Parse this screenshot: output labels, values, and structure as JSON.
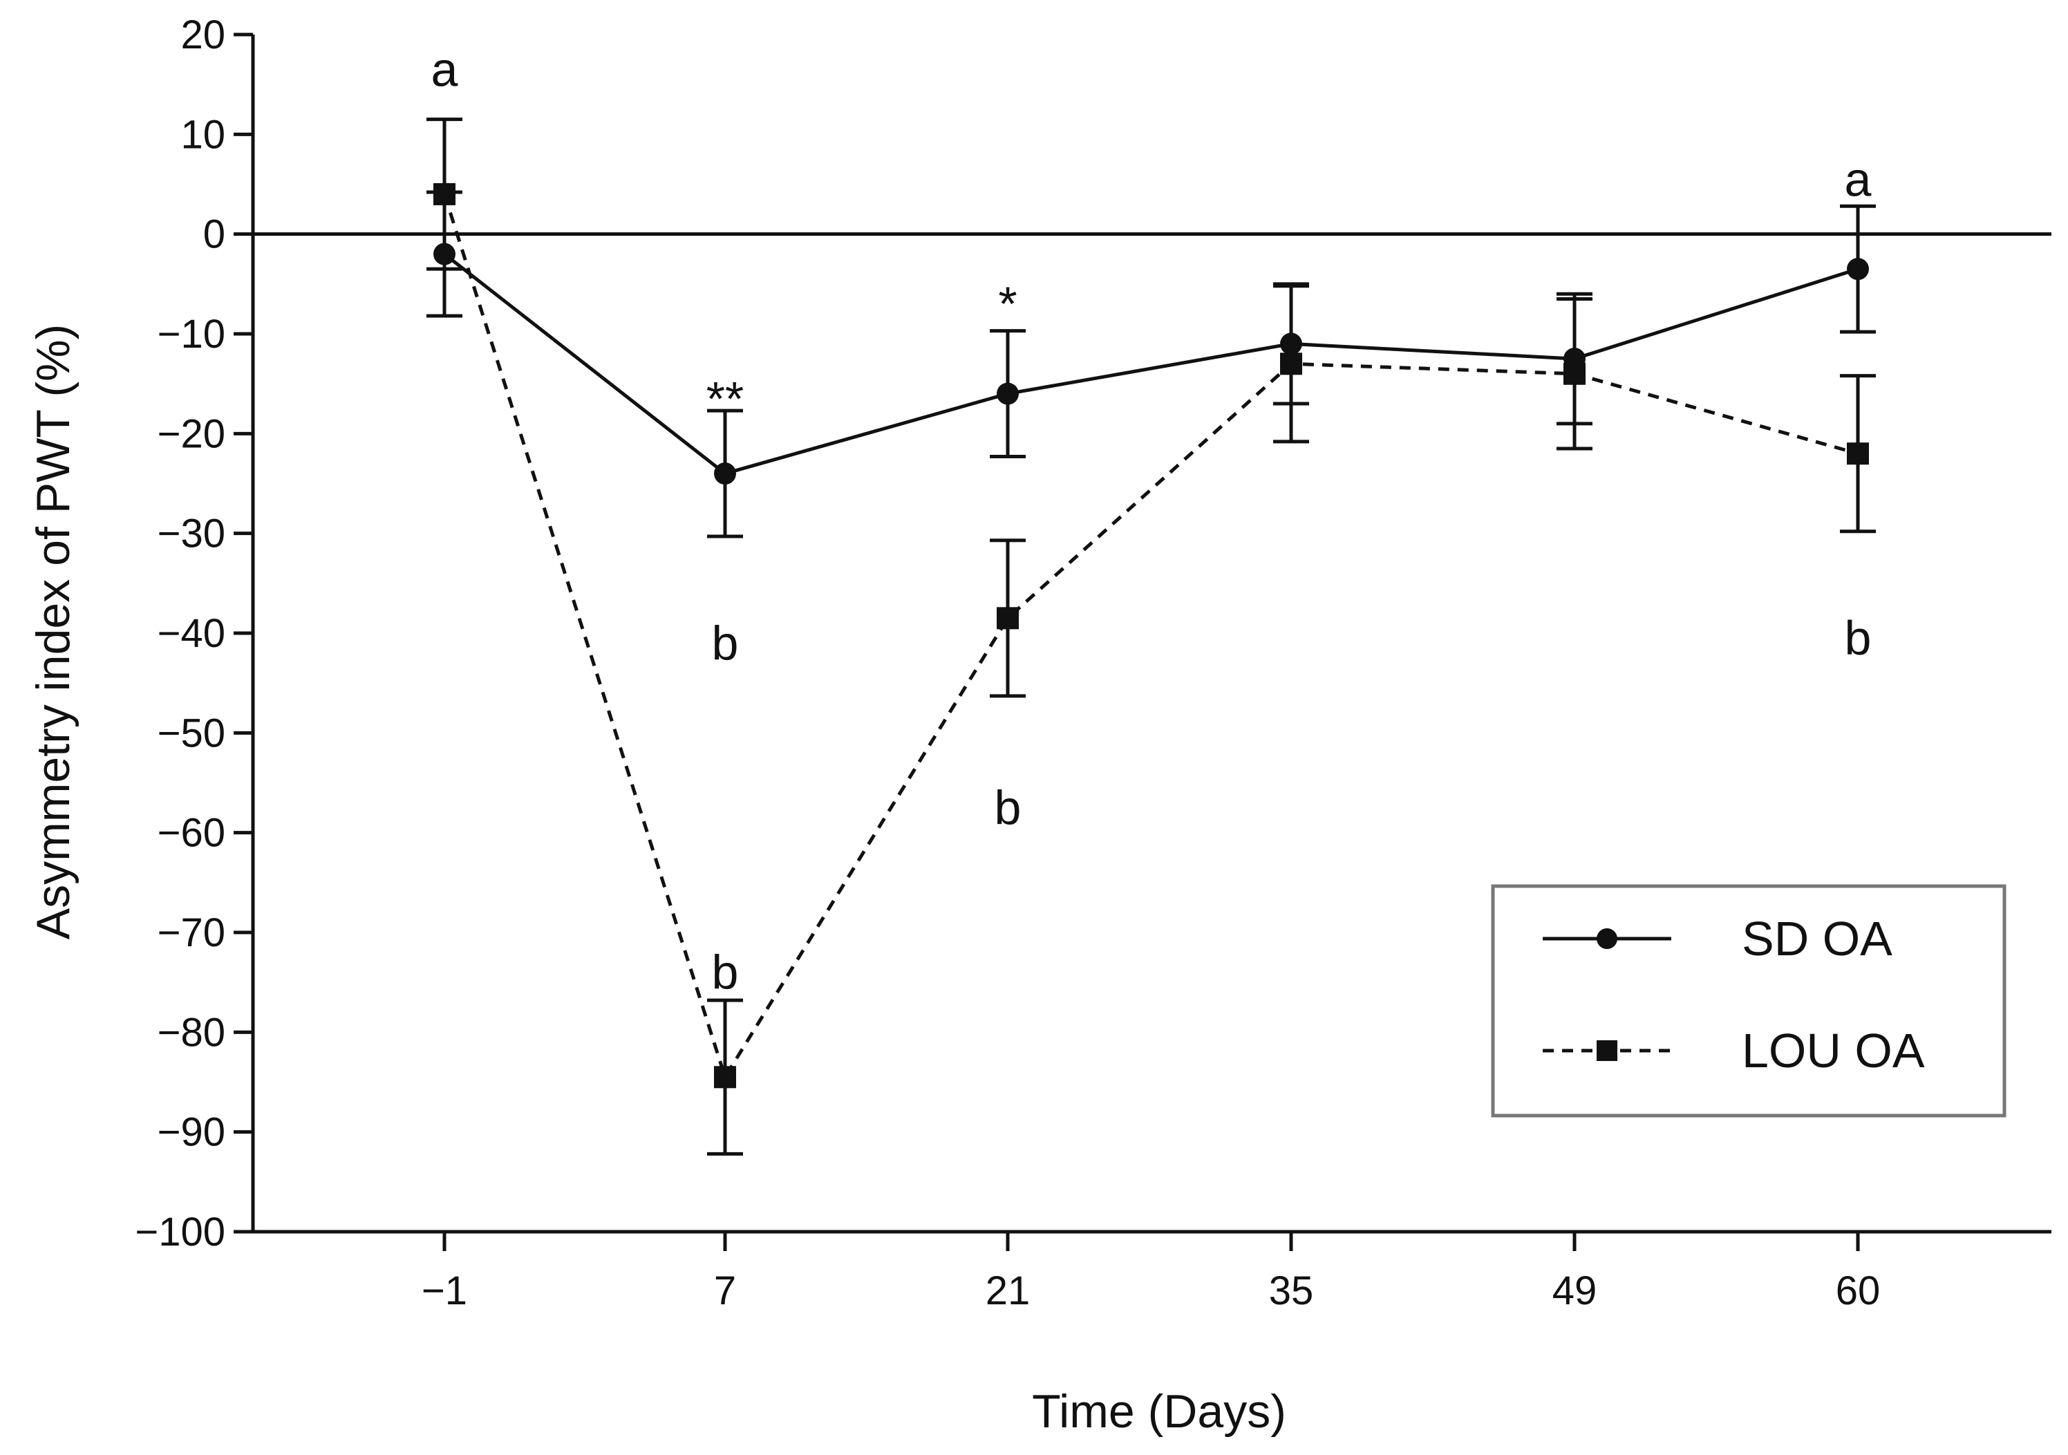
{
  "chart_data": {
    "type": "line",
    "title": "",
    "xlabel": "Time (Days)",
    "ylabel": "Asymmetry index of PWT (%)",
    "categories": [
      "−1",
      "7",
      "21",
      "35",
      "49",
      "60"
    ],
    "ylim": [
      -100,
      20
    ],
    "yticks": [
      20,
      10,
      0,
      -10,
      -20,
      -30,
      -40,
      -50,
      -60,
      -70,
      -80,
      -90,
      -100
    ],
    "ytick_labels": [
      "20",
      "10",
      "0",
      "−10",
      "−20",
      "−30",
      "−40",
      "−50",
      "−60",
      "−70",
      "−80",
      "−90",
      "−100"
    ],
    "reference_line": 0,
    "series": [
      {
        "name": "SD OA",
        "marker": "circle",
        "line": "solid",
        "values": [
          -2,
          -24,
          -16,
          -11,
          -12.5,
          -3.5
        ],
        "errors": [
          6.2,
          6.3,
          6.3,
          6.0,
          6.5,
          6.3
        ]
      },
      {
        "name": "LOU OA",
        "marker": "square",
        "line": "dashed",
        "values": [
          4,
          -84.5,
          -38.5,
          -13,
          -14,
          -22
        ],
        "errors": [
          7.5,
          7.7,
          7.8,
          7.8,
          7.5,
          7.8
        ]
      }
    ],
    "annotations": [
      {
        "text": "a",
        "x_index": 0,
        "y": 16.5
      },
      {
        "text": "**",
        "x_index": 1,
        "y": -16.5
      },
      {
        "text": "b",
        "x_index": 1,
        "y": -41
      },
      {
        "text": "b",
        "x_index": 1,
        "y": -74
      },
      {
        "text": "*",
        "x_index": 2,
        "y": -7
      },
      {
        "text": "b",
        "x_index": 2,
        "y": -57.5
      },
      {
        "text": "a",
        "x_index": 5,
        "y": 5.5
      },
      {
        "text": "b",
        "x_index": 5,
        "y": -40.5
      }
    ],
    "legend": {
      "position": "bottom-right"
    }
  }
}
